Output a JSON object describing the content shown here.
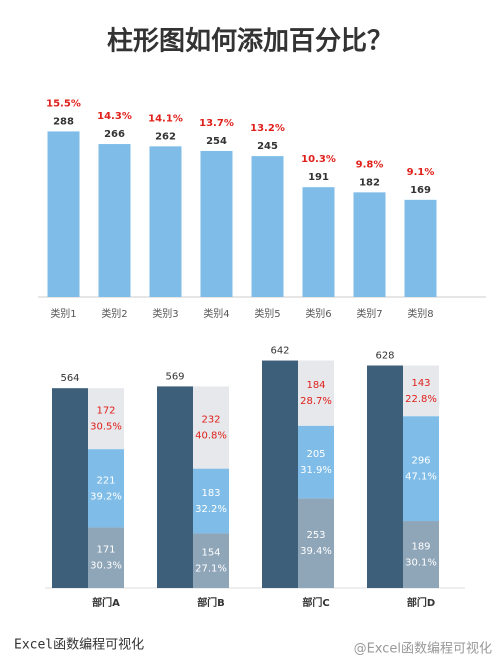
{
  "chart_data": [
    {
      "type": "bar",
      "title": "柱形图如何添加百分比？",
      "categories": [
        "类别1",
        "类别2",
        "类别3",
        "类别4",
        "类别5",
        "类别6",
        "类别7",
        "类别8"
      ],
      "values": [
        288,
        266,
        262,
        254,
        245,
        191,
        182,
        169
      ],
      "percent_labels": [
        "15.5%",
        "14.3%",
        "14.1%",
        "13.7%",
        "13.2%",
        "10.3%",
        "9.8%",
        "9.1%"
      ],
      "color": "#7fbde8",
      "label_color": "#e0201b",
      "ylim": [
        0,
        360
      ]
    },
    {
      "type": "stacked_bar",
      "categories": [
        "部门A",
        "部门B",
        "部门C",
        "部门D"
      ],
      "total": {
        "color": "#3d5f7a",
        "values": [
          564,
          569,
          642,
          628
        ]
      },
      "series": [
        {
          "color": "#8fa5b8",
          "values": [
            171,
            154,
            253,
            189
          ],
          "percent_labels": [
            "30.3%",
            "27.1%",
            "39.4%",
            "30.1%"
          ]
        },
        {
          "color": "#7fbde8",
          "values": [
            221,
            183,
            205,
            296
          ],
          "percent_labels": [
            "39.2%",
            "32.2%",
            "31.9%",
            "47.1%"
          ]
        },
        {
          "color": "#e6e8ec",
          "values": [
            172,
            232,
            184,
            143
          ],
          "percent_labels": [
            "30.5%",
            "40.8%",
            "28.7%",
            "22.8%"
          ]
        }
      ],
      "label_color": "#e0201b",
      "ylim": [
        0,
        700
      ]
    }
  ],
  "footer": {
    "left": "Excel函数编程可视化",
    "watermark": "@Excel函数编程可视化"
  }
}
